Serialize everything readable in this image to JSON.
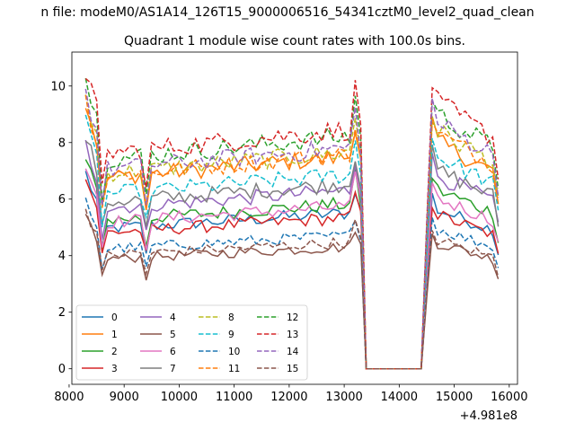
{
  "suptitle": "n file: modeM0/AS1A14_126T15_9000006516_54341cztM0_level2_quad_clean",
  "chart_data": {
    "type": "line",
    "title": "Quadrant 1 module wise count rates with 100.0s bins.",
    "xlabel": "",
    "ylabel": "",
    "x_offset_label": "+4.981e8",
    "xlim": [
      8050,
      16150
    ],
    "ylim": [
      -0.55,
      11.2
    ],
    "xticks": [
      8000,
      9000,
      10000,
      11000,
      12000,
      13000,
      14000,
      15000,
      16000
    ],
    "yticks": [
      0,
      2,
      4,
      6,
      8,
      10
    ],
    "grid": false,
    "legend": {
      "placement": "lower-left",
      "columns": 4
    },
    "x": [
      8300,
      8400,
      8500,
      8600,
      8700,
      8800,
      8900,
      9000,
      9100,
      9200,
      9300,
      9400,
      9500,
      9600,
      9700,
      9800,
      9900,
      10000,
      10100,
      10200,
      10300,
      10400,
      10500,
      10600,
      10700,
      10800,
      10900,
      11000,
      11100,
      11200,
      11300,
      11400,
      11500,
      11600,
      11700,
      11800,
      11900,
      12000,
      12100,
      12200,
      12300,
      12400,
      12500,
      12600,
      12700,
      12800,
      12900,
      13000,
      13100,
      13200,
      13300,
      13400,
      13500,
      13600,
      13700,
      13800,
      13900,
      14000,
      14100,
      14200,
      14300,
      14400,
      14500,
      14600,
      14700,
      14800,
      14900,
      15000,
      15100,
      15200,
      15300,
      15400,
      15500,
      15600,
      15700,
      15800
    ],
    "series": [
      {
        "name": "0",
        "color": "#1f77b4",
        "dash": "solid",
        "base": 6.9,
        "end": 5.7
      },
      {
        "name": "1",
        "color": "#ff7f0e",
        "dash": "solid",
        "base": 9.4,
        "end": 8.1
      },
      {
        "name": "2",
        "color": "#2ca02c",
        "dash": "solid",
        "base": 7.3,
        "end": 6.4
      },
      {
        "name": "3",
        "color": "#d62728",
        "dash": "solid",
        "base": 6.7,
        "end": 5.5
      },
      {
        "name": "4",
        "color": "#9467bd",
        "dash": "solid",
        "base": 7.9,
        "end": 6.9
      },
      {
        "name": "5",
        "color": "#8c564b",
        "dash": "solid",
        "base": 5.4,
        "end": 4.5
      },
      {
        "name": "6",
        "color": "#e377c2",
        "dash": "solid",
        "base": 7.2,
        "end": 6.1
      },
      {
        "name": "7",
        "color": "#7f7f7f",
        "dash": "solid",
        "base": 8.2,
        "end": 7.1
      },
      {
        "name": "8",
        "color": "#bcbd22",
        "dash": "dashed",
        "base": 9.6,
        "end": 8.5
      },
      {
        "name": "9",
        "color": "#17becf",
        "dash": "dashed",
        "base": 8.6,
        "end": 7.6
      },
      {
        "name": "10",
        "color": "#1f77b4",
        "dash": "dashed",
        "base": 5.9,
        "end": 5.0
      },
      {
        "name": "11",
        "color": "#ff7f0e",
        "dash": "dashed",
        "base": 9.5,
        "end": 8.4
      },
      {
        "name": "12",
        "color": "#2ca02c",
        "dash": "dashed",
        "base": 10.3,
        "end": 9.1
      },
      {
        "name": "13",
        "color": "#d62728",
        "dash": "dashed",
        "base": 10.6,
        "end": 9.5
      },
      {
        "name": "14",
        "color": "#9467bd",
        "dash": "dashed",
        "base": 9.8,
        "end": 8.8
      },
      {
        "name": "15",
        "color": "#8c564b",
        "dash": "dashed",
        "base": 5.6,
        "end": 4.6
      }
    ]
  }
}
